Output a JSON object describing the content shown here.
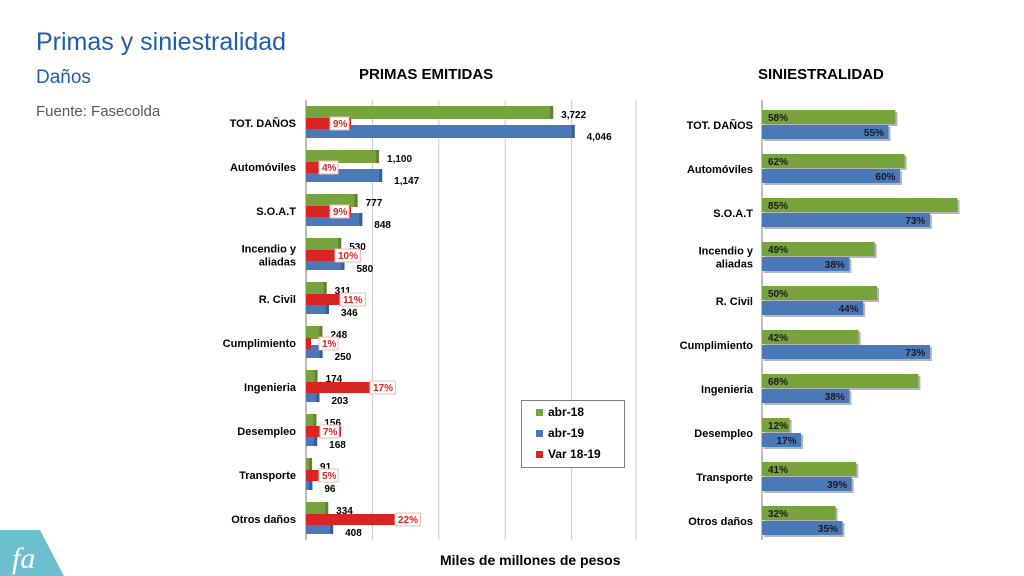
{
  "header": {
    "title": "Primas y siniestralidad",
    "subtitle": "Daños",
    "source": "Fuente: Fasecolda"
  },
  "colors": {
    "green": "#77a33c",
    "blue": "#4a79b8",
    "red": "#d92424",
    "title_blue": "#1f5fa8"
  },
  "chart_data": [
    {
      "type": "bar",
      "orientation": "horizontal",
      "title": "PRIMAS EMITIDAS",
      "xlabel": "Miles de millones de pesos",
      "legend_position": "bottom-right",
      "categories": [
        "TOT. DAÑOS",
        "Automóviles",
        "S.O.A.T",
        "Incendio y aliadas",
        "R. Civil",
        "Cumplimiento",
        "Ingenieria",
        "Desempleo",
        "Transporte",
        "Otros daños"
      ],
      "series": [
        {
          "name": "abr-18",
          "values": [
            3722,
            1100,
            777,
            530,
            311,
            248,
            174,
            156,
            91,
            334
          ],
          "labels": [
            "3,722",
            "1,100",
            "777",
            "530",
            "311",
            "248",
            "174",
            "156",
            "91",
            "334"
          ]
        },
        {
          "name": "abr-19",
          "values": [
            4046,
            1147,
            848,
            580,
            346,
            250,
            203,
            168,
            96,
            408
          ],
          "labels": [
            "4,046",
            "1,147",
            "848",
            "580",
            "346",
            "250",
            "203",
            "168",
            "96",
            "408"
          ]
        },
        {
          "name": "Var 18-19",
          "values": [
            9,
            4,
            9,
            10,
            11,
            1,
            17,
            7,
            5,
            22
          ],
          "labels": [
            "9%",
            "4%",
            "9%",
            "10%",
            "11%",
            "1%",
            "17%",
            "7%",
            "5%",
            "22%"
          ]
        }
      ]
    },
    {
      "type": "bar",
      "orientation": "horizontal",
      "title": "SINIESTRALIDAD",
      "categories": [
        "TOT. DAÑOS",
        "Automóviles",
        "S.O.A.T",
        "Incendio y aliadas",
        "R. Civil",
        "Cumplimiento",
        "Ingenieria",
        "Desempleo",
        "Transporte",
        "Otros daños"
      ],
      "series": [
        {
          "name": "abr-18",
          "values": [
            58,
            62,
            85,
            49,
            50,
            42,
            68,
            12,
            41,
            32
          ],
          "labels": [
            "58%",
            "62%",
            "85%",
            "49%",
            "50%",
            "42%",
            "68%",
            "12%",
            "41%",
            "32%"
          ]
        },
        {
          "name": "abr-19",
          "values": [
            55,
            60,
            73,
            38,
            44,
            73,
            38,
            17,
            39,
            35
          ],
          "labels": [
            "55%",
            "60%",
            "73%",
            "38%",
            "44%",
            "73%",
            "38%",
            "17%",
            "39%",
            "35%"
          ]
        }
      ]
    }
  ]
}
